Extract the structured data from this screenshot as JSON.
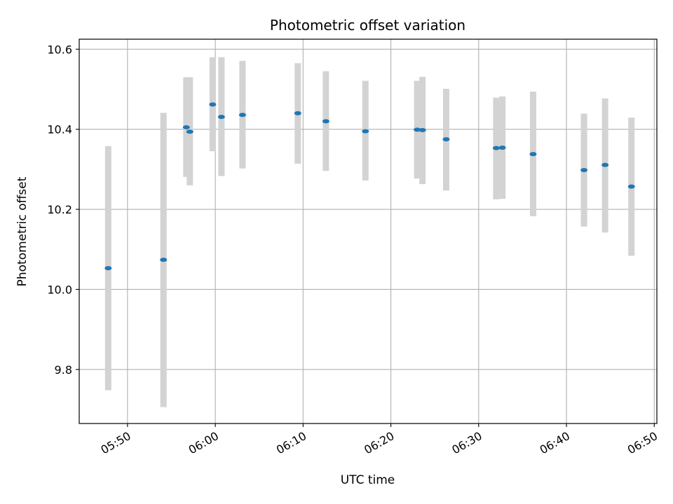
{
  "chart_data": {
    "type": "scatter",
    "title": "Photometric offset variation",
    "xlabel": "UTC time",
    "ylabel": "Photometric offset",
    "x_unit": "minute of day (UTC)",
    "xlim": [
      344.5,
      410.3
    ],
    "ylim": [
      9.665,
      10.625
    ],
    "grid": true,
    "marker_color": "#1f77b4",
    "errorbar_color": "#d3d3d3",
    "x_ticks": [
      {
        "value": 350,
        "label": "05:50"
      },
      {
        "value": 360,
        "label": "06:00"
      },
      {
        "value": 370,
        "label": "06:10"
      },
      {
        "value": 380,
        "label": "06:20"
      },
      {
        "value": 390,
        "label": "06:30"
      },
      {
        "value": 400,
        "label": "06:40"
      },
      {
        "value": 410,
        "label": "06:50"
      }
    ],
    "y_ticks": [
      {
        "value": 9.8,
        "label": "9.8"
      },
      {
        "value": 10.0,
        "label": "10.0"
      },
      {
        "value": 10.2,
        "label": "10.2"
      },
      {
        "value": 10.4,
        "label": "10.4"
      },
      {
        "value": 10.6,
        "label": "10.6"
      }
    ],
    "points": [
      {
        "x": 347.8,
        "y": 10.053,
        "ylo": 9.748,
        "yhi": 10.358
      },
      {
        "x": 354.1,
        "y": 10.074,
        "ylo": 9.706,
        "yhi": 10.441
      },
      {
        "x": 356.7,
        "y": 10.405,
        "ylo": 10.281,
        "yhi": 10.53
      },
      {
        "x": 357.1,
        "y": 10.394,
        "ylo": 10.26,
        "yhi": 10.53
      },
      {
        "x": 359.7,
        "y": 10.462,
        "ylo": 10.345,
        "yhi": 10.58
      },
      {
        "x": 360.7,
        "y": 10.431,
        "ylo": 10.283,
        "yhi": 10.58
      },
      {
        "x": 363.1,
        "y": 10.436,
        "ylo": 10.302,
        "yhi": 10.571
      },
      {
        "x": 369.4,
        "y": 10.44,
        "ylo": 10.314,
        "yhi": 10.565
      },
      {
        "x": 372.6,
        "y": 10.42,
        "ylo": 10.296,
        "yhi": 10.545
      },
      {
        "x": 377.1,
        "y": 10.395,
        "ylo": 10.272,
        "yhi": 10.521
      },
      {
        "x": 383.0,
        "y": 10.399,
        "ylo": 10.277,
        "yhi": 10.521
      },
      {
        "x": 383.6,
        "y": 10.398,
        "ylo": 10.263,
        "yhi": 10.531
      },
      {
        "x": 386.3,
        "y": 10.375,
        "ylo": 10.247,
        "yhi": 10.501
      },
      {
        "x": 392.0,
        "y": 10.353,
        "ylo": 10.225,
        "yhi": 10.479
      },
      {
        "x": 392.7,
        "y": 10.354,
        "ylo": 10.226,
        "yhi": 10.482
      },
      {
        "x": 396.2,
        "y": 10.338,
        "ylo": 10.183,
        "yhi": 10.494
      },
      {
        "x": 402.0,
        "y": 10.298,
        "ylo": 10.157,
        "yhi": 10.439
      },
      {
        "x": 404.4,
        "y": 10.311,
        "ylo": 10.142,
        "yhi": 10.477
      },
      {
        "x": 407.4,
        "y": 10.257,
        "ylo": 10.084,
        "yhi": 10.429
      }
    ]
  }
}
